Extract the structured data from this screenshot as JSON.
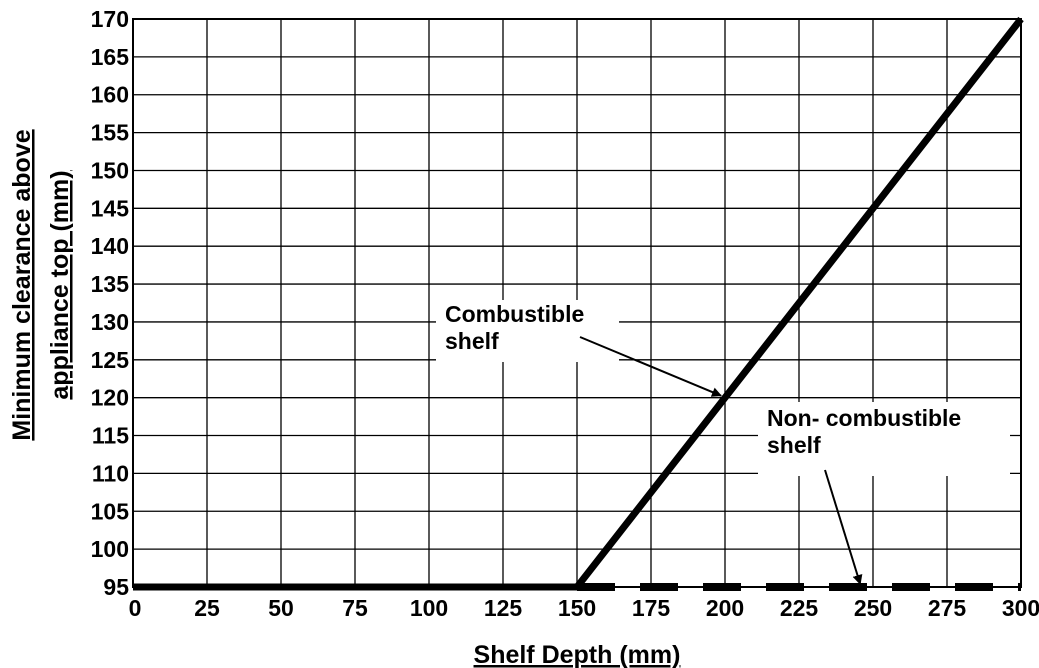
{
  "chart_data": {
    "type": "line",
    "title": "",
    "xlabel": "Shelf Depth (mm)",
    "ylabel_line1": "Minimum clearance above",
    "ylabel_line2": "appliance top (mm)",
    "xlim": [
      0,
      300
    ],
    "ylim": [
      95,
      170
    ],
    "x_ticks": [
      0,
      25,
      50,
      75,
      100,
      125,
      150,
      175,
      200,
      225,
      250,
      275,
      300
    ],
    "y_ticks": [
      95,
      100,
      105,
      110,
      115,
      120,
      125,
      130,
      135,
      140,
      145,
      150,
      155,
      160,
      165,
      170
    ],
    "grid": true,
    "series": [
      {
        "name": "Combustible shelf",
        "style": "solid",
        "color": "#000000",
        "x": [
          0,
          150,
          300
        ],
        "y": [
          95,
          95,
          170
        ]
      },
      {
        "name": "Non- combustible shelf",
        "style": "dashed",
        "color": "#000000",
        "x": [
          150,
          300
        ],
        "y": [
          95,
          95
        ]
      }
    ],
    "annotations": [
      {
        "lines": [
          "Combustible",
          "shelf"
        ],
        "points_to": [
          200,
          120
        ]
      },
      {
        "lines": [
          "Non- combustible",
          "shelf"
        ],
        "points_to": [
          245,
          95
        ]
      }
    ]
  }
}
